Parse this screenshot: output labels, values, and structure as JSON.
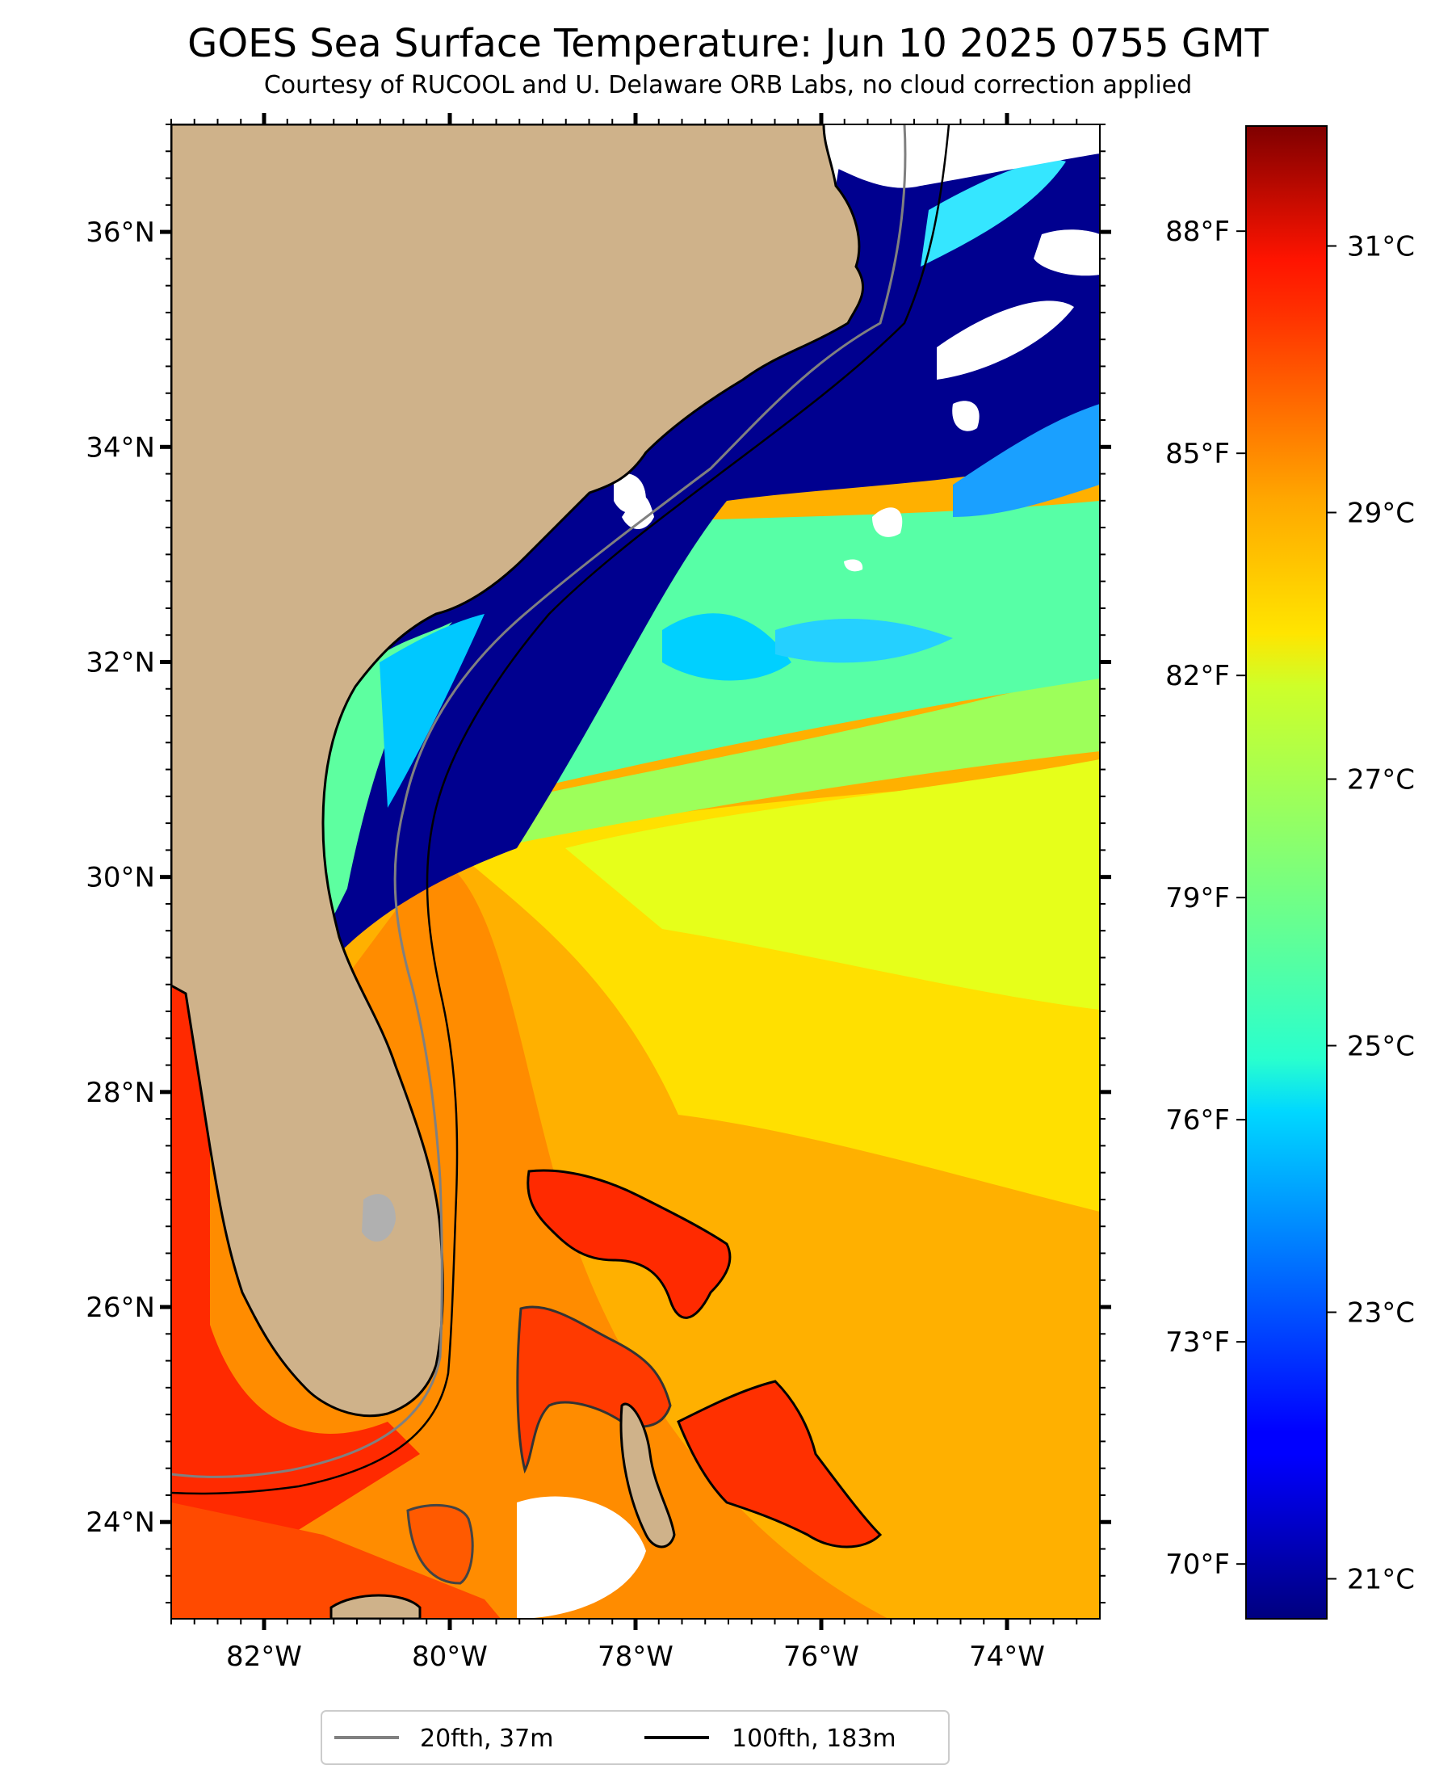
{
  "title": "GOES Sea Surface Temperature: Jun 10 2025 0755 GMT",
  "subtitle": "Courtesy of RUCOOL and U. Delaware ORB Labs, no cloud correction applied",
  "map": {
    "lon_range": [
      -83.0,
      -73.0
    ],
    "lat_range": [
      23.1,
      37.0
    ],
    "lon_ticks": [
      -82,
      -80,
      -78,
      -76,
      -74
    ],
    "lon_tick_labels": [
      "82°W",
      "80°W",
      "78°W",
      "76°W",
      "74°W"
    ],
    "lat_ticks": [
      24,
      26,
      28,
      30,
      32,
      34,
      36
    ],
    "lat_tick_labels": [
      "24°N",
      "26°N",
      "28°N",
      "30°N",
      "32°N",
      "34°N",
      "36°N"
    ],
    "fahrenheit_ticks": [
      70,
      73,
      76,
      79,
      82,
      85,
      88
    ],
    "fahrenheit_tick_labels": [
      "70°F",
      "73°F",
      "76°F",
      "79°F",
      "82°F",
      "85°F",
      "88°F"
    ],
    "land_color": "#cfb28a",
    "cloud_color": "#ffffff"
  },
  "colorbar": {
    "range_c": [
      20.7,
      31.9
    ],
    "ticks_c": [
      21,
      23,
      25,
      27,
      29,
      31
    ],
    "tick_labels": [
      "21°C",
      "23°C",
      "25°C",
      "27°C",
      "29°C",
      "31°C"
    ],
    "colormap": "jet"
  },
  "legend": {
    "items": [
      {
        "label": "20fth, 37m",
        "color": "#808080"
      },
      {
        "label": "100fth, 183m",
        "color": "#000000"
      }
    ],
    "placement": "bottom-center"
  }
}
